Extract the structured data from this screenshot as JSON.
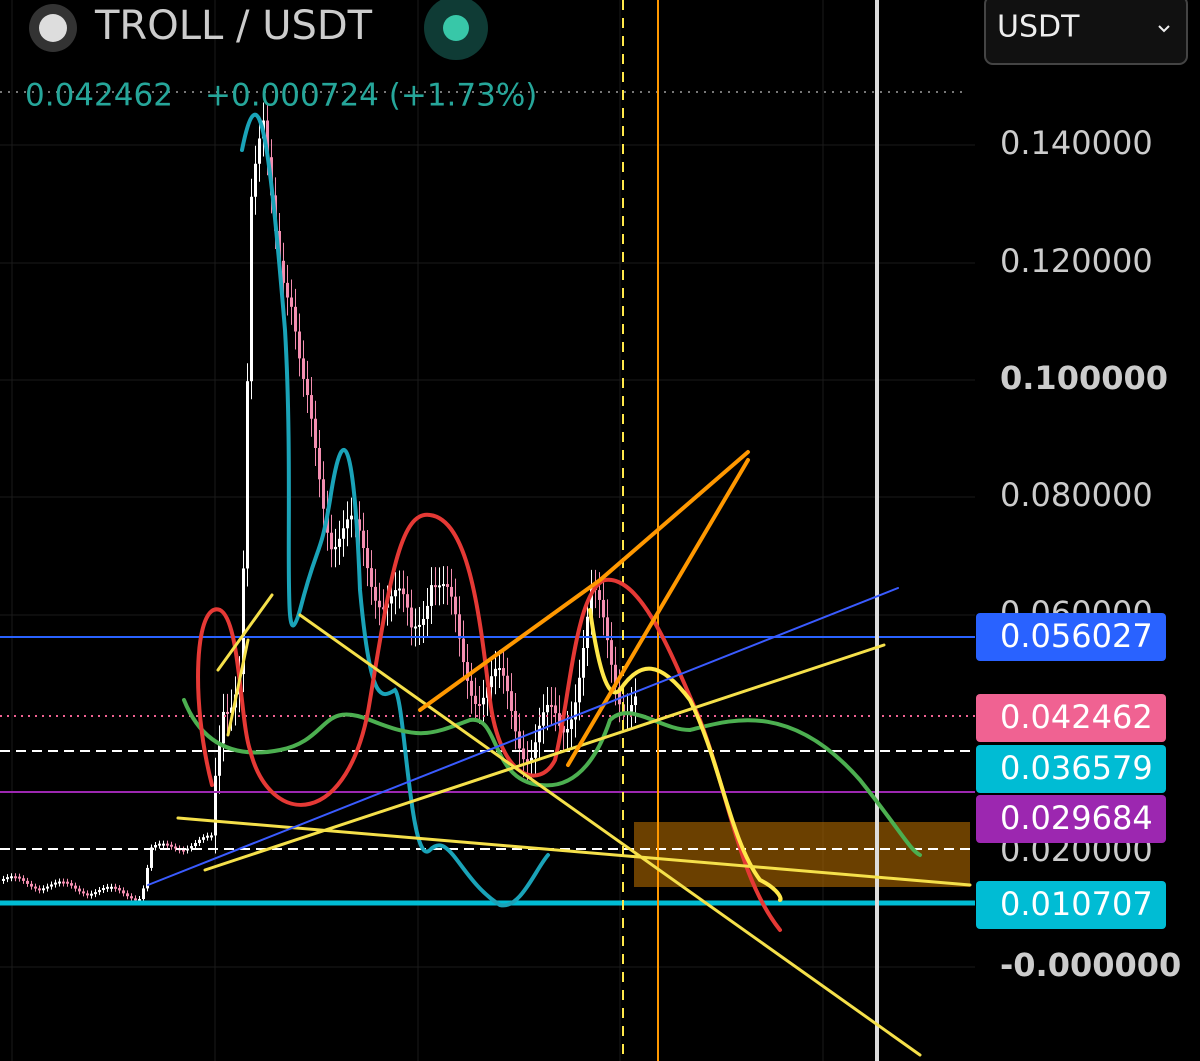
{
  "header": {
    "symbol": "TROLL / USDT",
    "price": "0.042462",
    "change": "+0.000724 (+1.73%)",
    "currency": "USDT"
  },
  "price_axis": {
    "ticks": [
      "0.140000",
      "0.120000",
      "0.100000",
      "0.080000",
      "0.060000",
      "0.020000",
      "-0.000000"
    ]
  },
  "price_tags": [
    {
      "label": "0.056027",
      "color": "#2962ff"
    },
    {
      "label": "0.042462",
      "color": "#f06292"
    },
    {
      "label": "0.036579",
      "color": "#00bcd4"
    },
    {
      "label": "0.029684",
      "color": "#9c27b0"
    },
    {
      "label": "0.010707",
      "color": "#00bcd4"
    }
  ]
}
